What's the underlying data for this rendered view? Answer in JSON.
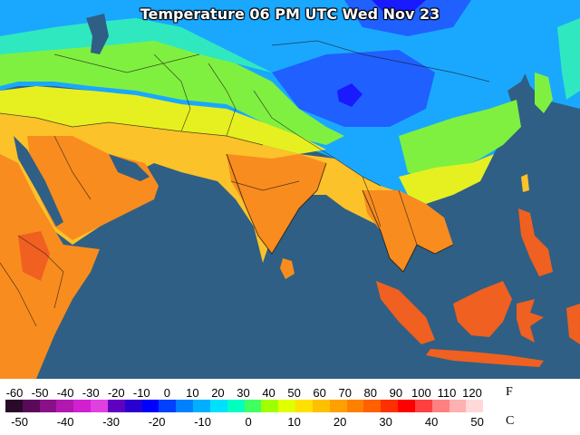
{
  "title": "Temperature 06 PM UTC Wed Nov 23",
  "legend": {
    "fahrenheit_unit": "F",
    "celsius_unit": "C",
    "fahrenheit_ticks": [
      "-60",
      "-50",
      "-40",
      "-30",
      "-20",
      "-10",
      "0",
      "10",
      "20",
      "30",
      "40",
      "50",
      "60",
      "70",
      "80",
      "90",
      "100",
      "110",
      "120"
    ],
    "celsius_ticks": [
      "-50",
      "-40",
      "-30",
      "-20",
      "-10",
      "0",
      "10",
      "20",
      "30",
      "40",
      "50"
    ],
    "color_scale": [
      "#2a0a2a",
      "#5a0a5a",
      "#8a108a",
      "#b018b0",
      "#d020d0",
      "#e040e0",
      "#6000c0",
      "#2a00d0",
      "#0000ff",
      "#0040ff",
      "#0080ff",
      "#00b0ff",
      "#00e0ff",
      "#00ffc0",
      "#40ff60",
      "#a0ff00",
      "#e0ff00",
      "#ffe000",
      "#ffc000",
      "#ffa000",
      "#ff8000",
      "#ff6000",
      "#ff3000",
      "#ff0000",
      "#ff4040",
      "#ff8080",
      "#ffb0b0",
      "#ffd8d8",
      "#ffffff"
    ]
  },
  "map_colors": {
    "ocean": "#2f5f84",
    "very_warm": "#f06020",
    "warm": "#f88c1e",
    "mild": "#fbc22a",
    "cool": "#e6f020",
    "cold": "#80f040",
    "colder": "#30e8c0",
    "freezing": "#1aa8ff",
    "very_cold": "#2060ff",
    "extreme_cold": "#1a1aff"
  },
  "icons": {
    "borders": "country-borders",
    "coast": "coastline"
  }
}
